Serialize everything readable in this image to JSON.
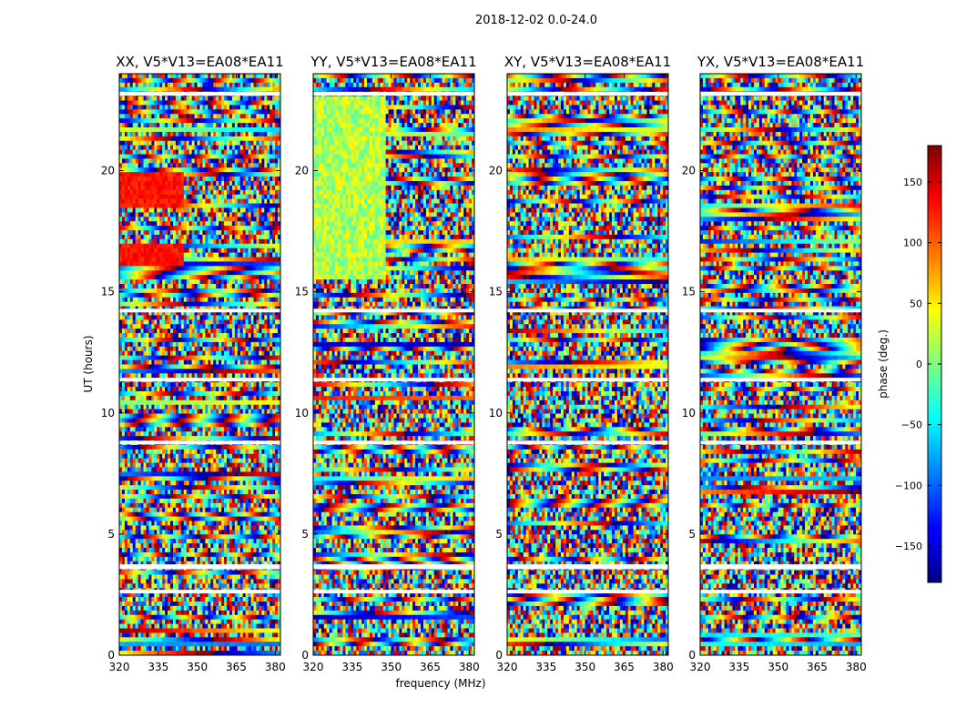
{
  "figure": {
    "suptitle": "2018-12-02 0.0-24.0",
    "xlabel": "frequency (MHz)",
    "ylabel": "UT (hours)",
    "colorbar_label": "phase (deg.)",
    "colormap": "jet"
  },
  "chart_data": {
    "type": "heatmap",
    "title": "2018-12-02 0.0-24.0",
    "xlabel": "frequency (MHz)",
    "ylabel": "UT (hours)",
    "xlim": [
      320,
      382
    ],
    "ylim": [
      0,
      24
    ],
    "xticks": [
      320,
      335,
      350,
      365,
      380
    ],
    "yticks": [
      0,
      5,
      10,
      15,
      20
    ],
    "colorbar": {
      "label": "phase (deg.)",
      "range": [
        -180,
        180
      ],
      "ticks": [
        -150,
        -100,
        -50,
        0,
        50,
        100,
        150
      ]
    },
    "panels": [
      {
        "title": "XX, V5*V13=EA08*EA11",
        "polarization": "XX"
      },
      {
        "title": "YY, V5*V13=EA08*EA11",
        "polarization": "YY"
      },
      {
        "title": "XY, V5*V13=EA08*EA11",
        "polarization": "XY"
      },
      {
        "title": "YX, V5*V13=EA08*EA11",
        "polarization": "YX"
      }
    ],
    "flagged_gaps_hours": [
      [
        2.55,
        2.7
      ],
      [
        3.55,
        3.75
      ],
      [
        8.7,
        8.85
      ],
      [
        11.3,
        11.45
      ],
      [
        14.15,
        14.3
      ],
      [
        23.1,
        23.25
      ]
    ]
  }
}
